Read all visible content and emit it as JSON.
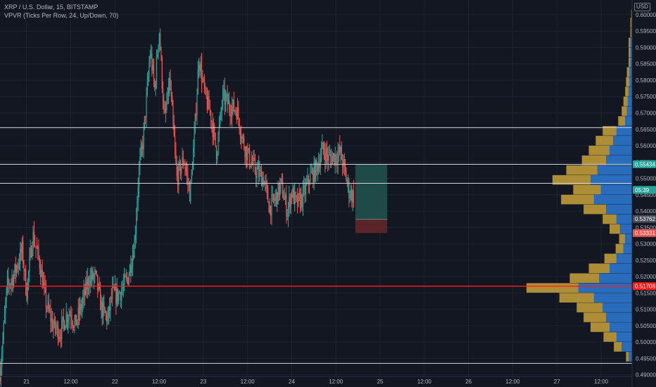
{
  "header": {
    "symbol_line": "XRP / U.S. Dollar, 15, BITSTAMP",
    "indicator_line": "VPVR (Ticks Per Row, 24, Up/Down, 70)",
    "currency": "USD"
  },
  "colors": {
    "background": "#131722",
    "grid": "#1e2330",
    "axis_text": "#b2b5be",
    "candle_up": "#26a69a",
    "candle_down": "#ef5350",
    "hline": "#d1d4dc",
    "hline_red": "#ff1e1e",
    "vp_up": "#2e7bd6",
    "vp_down": "#c9a23a",
    "position_profit": "#1e4a47",
    "position_loss": "#5b2428"
  },
  "chart_data": {
    "type": "candlestick",
    "ylim": [
      0.4895,
      0.6045
    ],
    "y_ticks": [
      "0.60000",
      "0.59500",
      "0.59000",
      "0.58500",
      "0.58000",
      "0.57500",
      "0.57000",
      "0.56500",
      "0.56000",
      "0.55500",
      "0.55000",
      "0.54500",
      "0.54000",
      "0.53500",
      "0.53000",
      "0.52500",
      "0.52000",
      "0.51500",
      "0.51000",
      "0.50500",
      "0.50000",
      "0.49500",
      "0.49000"
    ],
    "x_ticks": [
      "21",
      "12:00",
      "22",
      "12:00",
      "23",
      "12:00",
      "24",
      "12:00",
      "25",
      "12:00",
      "26",
      "12:00",
      "27",
      "12:00"
    ],
    "x_tick_days": [
      0.0,
      0.5,
      1.0,
      1.5,
      2.0,
      2.5,
      3.0,
      3.5,
      4.0,
      4.5,
      5.0,
      5.5,
      6.0,
      6.5
    ],
    "x_range_days": [
      -0.3,
      6.85
    ],
    "price_path": {
      "t_days": [
        -0.3,
        -0.27,
        -0.22,
        -0.15,
        -0.05,
        0.0,
        0.07,
        0.15,
        0.22,
        0.3,
        0.38,
        0.45,
        0.5,
        0.55,
        0.62,
        0.7,
        0.78,
        0.85,
        0.92,
        0.97,
        1.02,
        1.08,
        1.15,
        1.22,
        1.27,
        1.32,
        1.36,
        1.4,
        1.45,
        1.5,
        1.56,
        1.62,
        1.7,
        1.78,
        1.85,
        1.9,
        1.95,
        2.02,
        2.08,
        2.15,
        2.22,
        2.3,
        2.38,
        2.45,
        2.52,
        2.6,
        2.68,
        2.75,
        2.82,
        2.88,
        2.95,
        3.0,
        3.05,
        3.12,
        3.2,
        3.28,
        3.35,
        3.42,
        3.5,
        3.55,
        3.6,
        3.65,
        3.7
      ],
      "close": [
        0.491,
        0.5,
        0.517,
        0.52,
        0.528,
        0.515,
        0.533,
        0.524,
        0.512,
        0.505,
        0.503,
        0.508,
        0.509,
        0.505,
        0.511,
        0.519,
        0.52,
        0.51,
        0.507,
        0.515,
        0.514,
        0.516,
        0.52,
        0.53,
        0.552,
        0.562,
        0.575,
        0.589,
        0.577,
        0.596,
        0.567,
        0.58,
        0.55,
        0.556,
        0.545,
        0.563,
        0.587,
        0.575,
        0.57,
        0.558,
        0.575,
        0.572,
        0.571,
        0.561,
        0.556,
        0.552,
        0.55,
        0.541,
        0.544,
        0.548,
        0.54,
        0.546,
        0.542,
        0.544,
        0.55,
        0.553,
        0.559,
        0.556,
        0.557,
        0.558,
        0.552,
        0.546,
        0.5445
      ]
    },
    "hlines": [
      {
        "price": 0.5655,
        "color": "hline"
      },
      {
        "price": 0.5543,
        "color": "hline"
      },
      {
        "price": 0.5485,
        "color": "hline"
      },
      {
        "price": 0.51708,
        "color": "hline_red"
      },
      {
        "price": 0.4935,
        "color": "hline"
      }
    ],
    "price_labels": [
      {
        "text": "0.55434",
        "price": 0.55434,
        "bg": "#26a69a"
      },
      {
        "text": "05:39",
        "price": 0.5465,
        "bg": "#26a69a"
      },
      {
        "text": "0.53762",
        "price": 0.53762,
        "bg": "#4a4e59"
      },
      {
        "text": "0.53331",
        "price": 0.53331,
        "bg": "#ef5350"
      },
      {
        "text": "0.51708",
        "price": 0.51708,
        "bg": "#ff1e1e"
      }
    ],
    "position_tool": {
      "t_start": 3.72,
      "t_end": 4.08,
      "top": 0.5543,
      "entry": 0.5375,
      "stop": 0.5333
    },
    "volume_profile": {
      "price_levels": [
        0.4955,
        0.4985,
        0.5015,
        0.5045,
        0.5075,
        0.5105,
        0.5135,
        0.5165,
        0.5195,
        0.5225,
        0.5255,
        0.5285,
        0.5315,
        0.5345,
        0.5375,
        0.5405,
        0.5435,
        0.5465,
        0.5495,
        0.5525,
        0.5555,
        0.5585,
        0.5615,
        0.5645,
        0.5675,
        0.5705,
        0.5735,
        0.5765,
        0.5795,
        0.5825,
        0.5855,
        0.5885,
        0.5915,
        0.5945,
        0.5975,
        0.6
      ],
      "up_vol": [
        4,
        12,
        18,
        26,
        30,
        34,
        44,
        62,
        38,
        26,
        18,
        10,
        8,
        14,
        18,
        30,
        44,
        36,
        48,
        40,
        30,
        26,
        22,
        18,
        8,
        6,
        5,
        4,
        3,
        3,
        2,
        2,
        2,
        1,
        1,
        0.5
      ],
      "down_vol": [
        3,
        9,
        15,
        22,
        26,
        30,
        40,
        60,
        34,
        24,
        14,
        9,
        7,
        12,
        16,
        26,
        38,
        32,
        44,
        36,
        28,
        24,
        20,
        16,
        8,
        6,
        5,
        4,
        4,
        3,
        2,
        2,
        2,
        1,
        1,
        0.5
      ]
    }
  }
}
